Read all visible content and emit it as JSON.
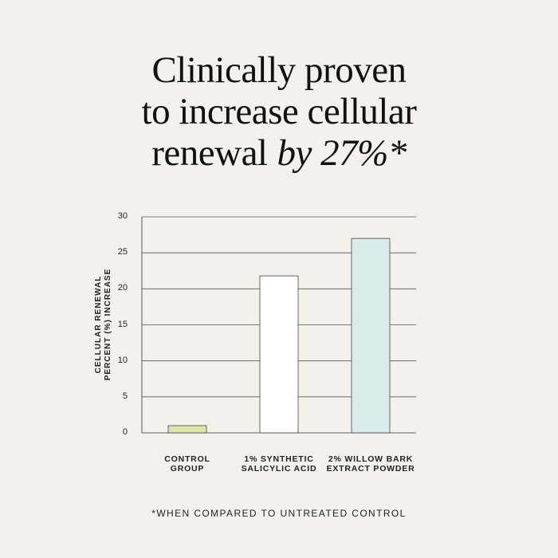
{
  "headline": {
    "line1": "Clinically proven",
    "line2": "to increase cellular",
    "line3": "renewal",
    "emphasis": "by 27%*"
  },
  "chart_data": {
    "type": "bar",
    "ylabel_lines": [
      "CELLULAR RENEWAL",
      "PERCENT (%) INCREASE"
    ],
    "ylim": [
      0,
      30
    ],
    "yticks": [
      "0",
      "5",
      "10",
      "15",
      "20",
      "25",
      "30"
    ],
    "grid": true,
    "categories": [
      {
        "lines": [
          "CONTROL",
          "GROUP"
        ]
      },
      {
        "lines": [
          "1% SYNTHETIC",
          "SALICYLIC ACID"
        ]
      },
      {
        "lines": [
          "2% WILLOW BARK",
          "EXTRACT POWDER"
        ]
      }
    ],
    "values": [
      1,
      21.8,
      27
    ],
    "colors": [
      "#dde6a8",
      "#ffffff",
      "#d9ecea"
    ]
  },
  "footnote": "*WHEN COMPARED TO UNTREATED CONTROL"
}
